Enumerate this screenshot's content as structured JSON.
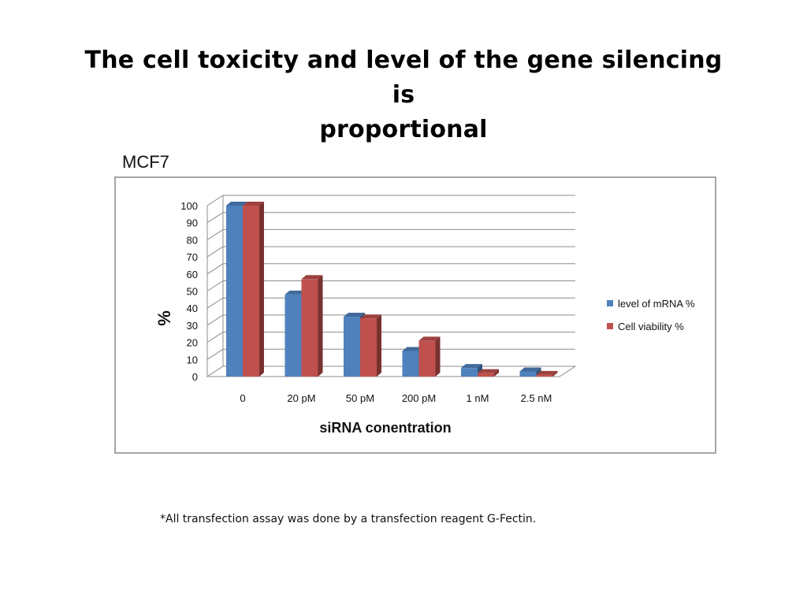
{
  "slide": {
    "title_line1": "The cell toxicity and level of the gene silencing is",
    "title_line2": "proportional",
    "chart_label": "MCF7",
    "footnote": "*All transfection assay was done by a transfection reagent G-Fectin."
  },
  "colors": {
    "mrna": "#4f81bd",
    "viability": "#c0504d"
  },
  "chart_data": {
    "type": "bar",
    "title": "",
    "xlabel": "siRNA conentration",
    "ylabel": "%",
    "ylim": [
      0,
      100
    ],
    "yticks": [
      0,
      10,
      20,
      30,
      40,
      50,
      60,
      70,
      80,
      90,
      100
    ],
    "categories": [
      "0",
      "20 pM",
      "50 pM",
      "200 pM",
      "1 nM",
      "2.5 nM"
    ],
    "series": [
      {
        "name": "level of mRNA %",
        "values": [
          100,
          48,
          35,
          15,
          5,
          3
        ]
      },
      {
        "name": "Cell viability %",
        "values": [
          100,
          57,
          34,
          21,
          2,
          1
        ]
      }
    ],
    "legend_position": "right",
    "grid": true
  }
}
